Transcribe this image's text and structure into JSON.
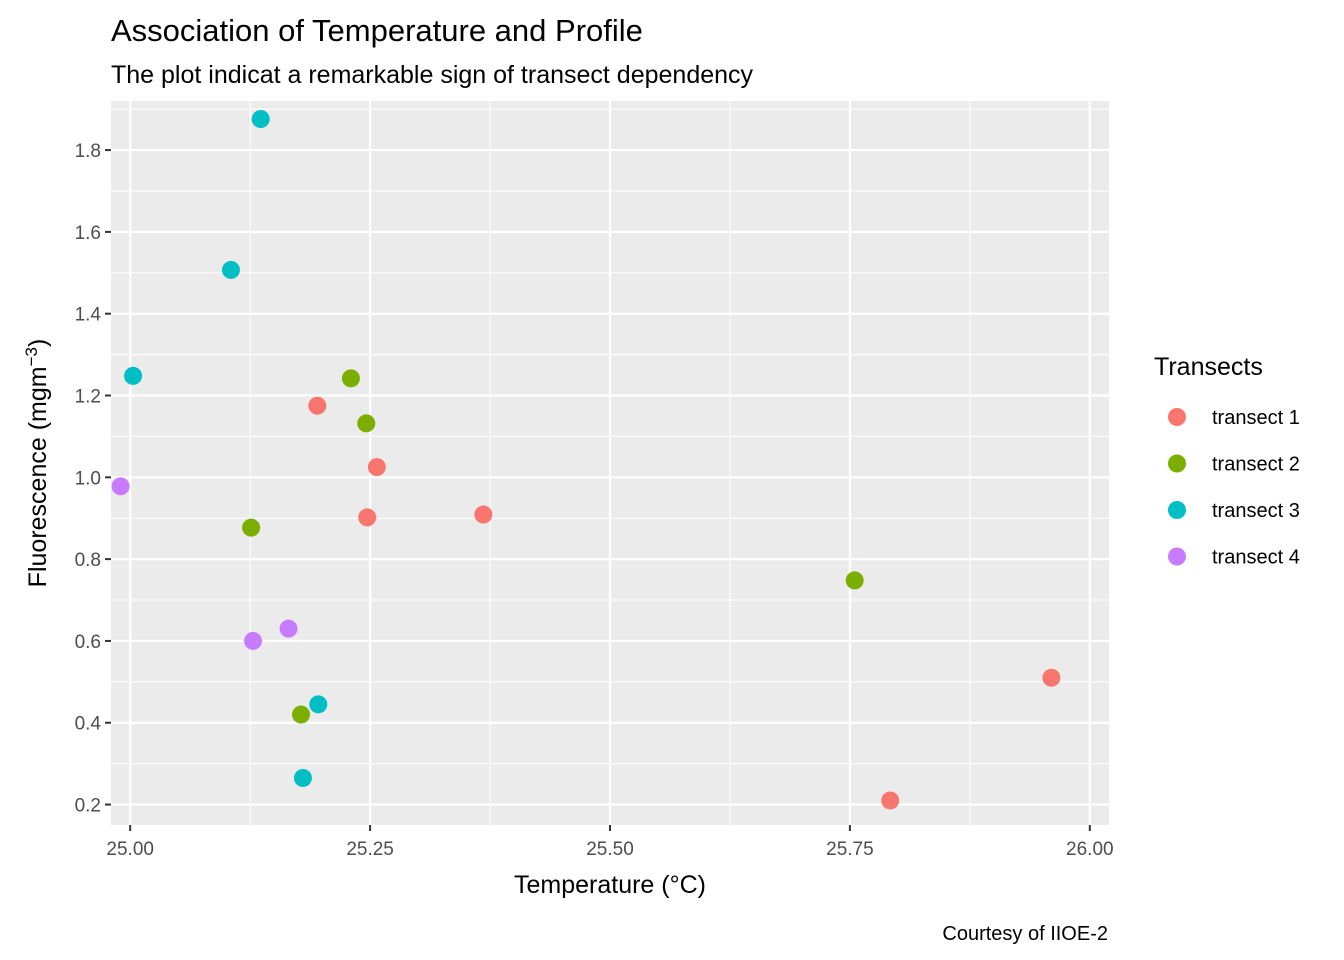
{
  "chart_data": {
    "type": "scatter",
    "title": "Association of Temperature and Profile",
    "subtitle": "The plot indicat a remarkable sign of transect dependency",
    "xlabel_main": "Temperature (",
    "xlabel_unit": "°C",
    "xlabel_close": ")",
    "ylabel_main": "Fluorescence (mgm",
    "ylabel_sup": "−3",
    "ylabel_close": ")",
    "caption": "Courtesy of IIOE-2",
    "xlim": [
      24.98,
      26.02
    ],
    "ylim": [
      0.15,
      1.92
    ],
    "x_ticks": [
      25.0,
      25.25,
      25.5,
      25.75,
      26.0
    ],
    "x_tick_labels": [
      "25.00",
      "25.25",
      "25.50",
      "25.75",
      "26.00"
    ],
    "y_ticks": [
      0.2,
      0.4,
      0.6,
      0.8,
      1.0,
      1.2,
      1.4,
      1.6,
      1.8
    ],
    "y_tick_labels": [
      "0.2",
      "0.4",
      "0.6",
      "0.8",
      "1.0",
      "1.2",
      "1.4",
      "1.6",
      "1.8"
    ],
    "grid": true,
    "legend": {
      "title": "Transects",
      "position": "right"
    },
    "series": [
      {
        "name": "transect 1",
        "color": "#F8766D",
        "points": [
          [
            25.195,
            1.175
          ],
          [
            25.257,
            1.025
          ],
          [
            25.247,
            0.902
          ],
          [
            25.368,
            0.909
          ],
          [
            25.792,
            0.21
          ],
          [
            25.96,
            0.51
          ]
        ]
      },
      {
        "name": "transect 2",
        "color": "#7CAE00",
        "points": [
          [
            25.23,
            1.242
          ],
          [
            25.246,
            1.132
          ],
          [
            25.126,
            0.877
          ],
          [
            25.755,
            0.748
          ],
          [
            25.178,
            0.42
          ]
        ]
      },
      {
        "name": "transect 3",
        "color": "#00BFC4",
        "points": [
          [
            25.136,
            1.876
          ],
          [
            25.105,
            1.507
          ],
          [
            25.003,
            1.248
          ],
          [
            25.196,
            0.445
          ],
          [
            25.18,
            0.265
          ]
        ]
      },
      {
        "name": "transect 4",
        "color": "#C77CFF",
        "points": [
          [
            24.99,
            0.978
          ],
          [
            25.128,
            0.6
          ],
          [
            25.165,
            0.63
          ]
        ]
      }
    ]
  }
}
